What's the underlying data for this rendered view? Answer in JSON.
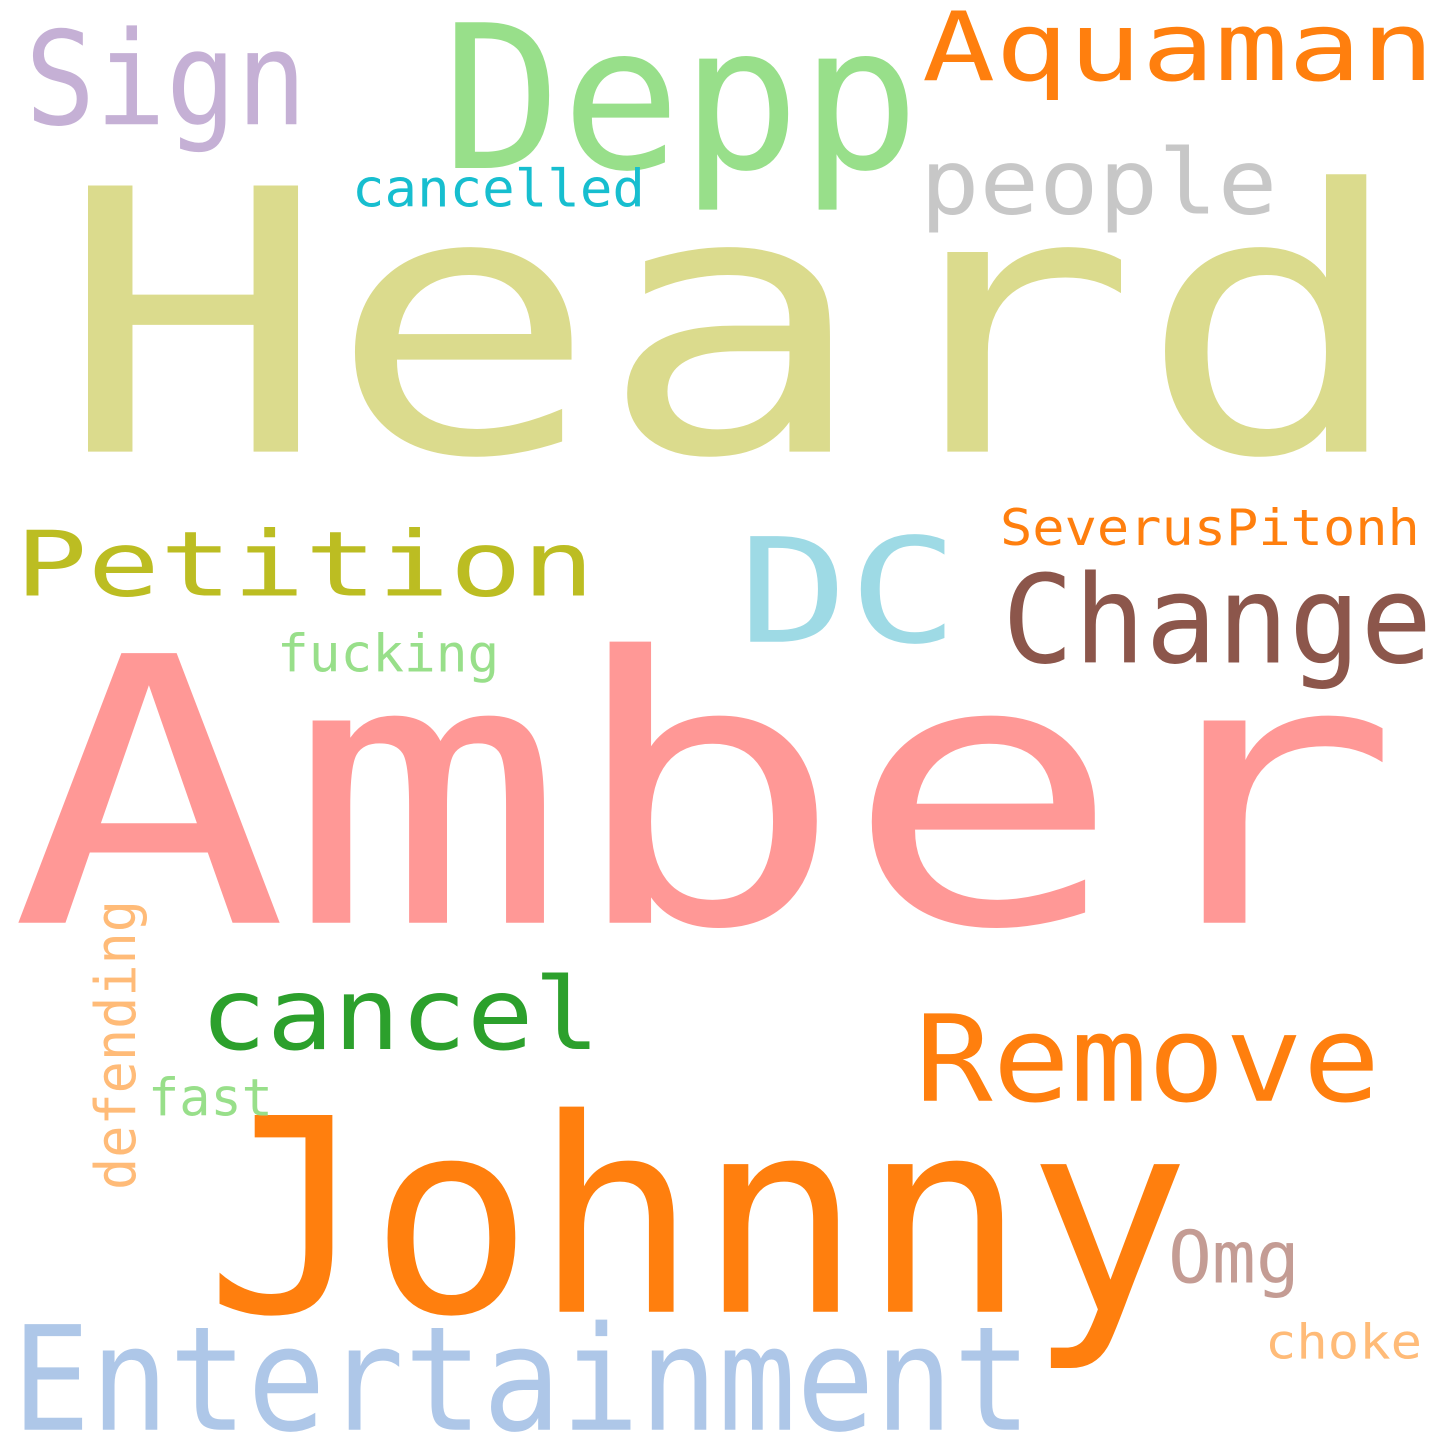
{
  "words": [
    {
      "text": "Heard",
      "color": "#dbdb8d"
    },
    {
      "text": "Amber",
      "color": "#ff9896"
    },
    {
      "text": "Johnny",
      "color": "#ff7f0e"
    },
    {
      "text": "Depp",
      "color": "#98df8a"
    },
    {
      "text": "Entertainment",
      "color": "#aec7e8"
    },
    {
      "text": "Aquaman",
      "color": "#ff7f0e"
    },
    {
      "text": "DC",
      "color": "#9edae5"
    },
    {
      "text": "Petition",
      "color": "#bcbd22"
    },
    {
      "text": "Change",
      "color": "#8c564b"
    },
    {
      "text": "Remove",
      "color": "#ff7f0e"
    },
    {
      "text": "cancel",
      "color": "#2ca02c"
    },
    {
      "text": "Sign",
      "color": "#c5b0d5"
    },
    {
      "text": "people",
      "color": "#c7c7c7"
    },
    {
      "text": "cancelled",
      "color": "#17becf"
    },
    {
      "text": "SeverusPitonh",
      "color": "#ff7f0e"
    },
    {
      "text": "fucking",
      "color": "#98df8a"
    },
    {
      "text": "defending",
      "color": "#ffbb78"
    },
    {
      "text": "fast",
      "color": "#98df8a"
    },
    {
      "text": "Omg",
      "color": "#c49c94"
    },
    {
      "text": "choke",
      "color": "#ffbb78"
    }
  ]
}
